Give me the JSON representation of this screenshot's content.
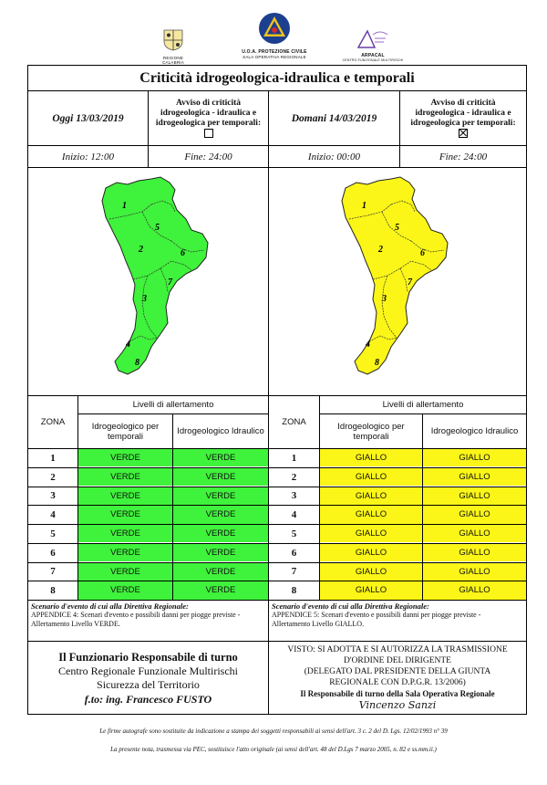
{
  "logos": {
    "left_caption": "REGIONE CALABRIA",
    "center_caption_1": "U.O.A. PROTEZIONE CIVILE",
    "center_caption_2": "SALA OPERATIVA REGIONALE",
    "right_caption_1": "ARPACAL",
    "right_caption_2": "CENTRO FUNZIONALE MULTIRISCHI"
  },
  "title": "Criticità idrogeologica-idraulica e temporali",
  "today": {
    "date": "Oggi 13/03/2019",
    "avviso_1": "Avviso di criticità",
    "avviso_2": "idrogeologica - idraulica e",
    "avviso_3": "idrogeologica per temporali:",
    "checked": false,
    "start": "Inizio: 12:00",
    "end": "Fine: 24:00",
    "color": "#3ff23b"
  },
  "tomorrow": {
    "date": "Domani 14/03/2019",
    "avviso_1": "Avviso di criticità",
    "avviso_2": "idrogeologica - idraulica e",
    "avviso_3": "idrogeologica per temporali:",
    "checked": true,
    "start": "Inizio: 00:00",
    "end": "Fine: 24:00",
    "color": "#fbf617"
  },
  "map_zone_labels": [
    "1",
    "2",
    "3",
    "4",
    "5",
    "6",
    "7",
    "8"
  ],
  "table": {
    "zona_header": "ZONA",
    "levels_header": "Livelli di allertamento",
    "col_1": "Idrogeologico per temporali",
    "col_2": "Idrogeologico Idraulico",
    "zones": [
      "1",
      "2",
      "3",
      "4",
      "5",
      "6",
      "7",
      "8"
    ],
    "today_rows": [
      [
        "VERDE",
        "VERDE"
      ],
      [
        "VERDE",
        "VERDE"
      ],
      [
        "VERDE",
        "VERDE"
      ],
      [
        "VERDE",
        "VERDE"
      ],
      [
        "VERDE",
        "VERDE"
      ],
      [
        "VERDE",
        "VERDE"
      ],
      [
        "VERDE",
        "VERDE"
      ],
      [
        "VERDE",
        "VERDE"
      ]
    ],
    "tomorrow_rows": [
      [
        "GIALLO",
        "GIALLO"
      ],
      [
        "GIALLO",
        "GIALLO"
      ],
      [
        "GIALLO",
        "GIALLO"
      ],
      [
        "GIALLO",
        "GIALLO"
      ],
      [
        "GIALLO",
        "GIALLO"
      ],
      [
        "GIALLO",
        "GIALLO"
      ],
      [
        "GIALLO",
        "GIALLO"
      ],
      [
        "GIALLO",
        "GIALLO"
      ]
    ]
  },
  "scenario": {
    "heading": "Scenario d'evento di cui alla Direttiva Regionale:",
    "today_1": "APPENDICE 4: Scenari d'evento e possibili danni per piogge previste -",
    "today_2": "Allertamento Livello VERDE.",
    "tomorrow_1": "APPENDICE 5: Scenari d'evento e possibili danni per piogge previste -",
    "tomorrow_2": "Allertamento Livello GIALLO."
  },
  "signature_left": {
    "line1": "Il Funzionario Responsabile di turno",
    "line2": "Centro Regionale Funzionale Multirischi",
    "line3": "Sicurezza del Territorio",
    "line4": "f.to: ing. Francesco FUSTO"
  },
  "signature_right": {
    "line1": "VISTO: SI ADOTTA E SI AUTORIZZA LA TRASMISSIONE",
    "line2": "D'ORDINE DEL DIRIGENTE",
    "line3": "(DELEGATO DAL PRESIDENTE DELLA GIUNTA",
    "line4": "REGIONALE CON D.P.G.R. 13/2006)",
    "line5": "Il Responsabile di turno della Sala Operativa Regionale",
    "handwritten": "Vincenzo Sanzi"
  },
  "footer": {
    "line1": "Le firme autografe sono sostituite da indicazione a stampa dei soggetti responsabili ai sensi dell'art. 3 c. 2 del D. Lgs. 12/02/1993 n° 39",
    "line2": "La presente nota, trasmessa via PEC, sostituisce l'atto originale (ai sensi dell'art. 48 del D.Lgs 7 marzo 2005, n. 82 e ss.mm.ii.)"
  },
  "colors": {
    "green": "#3ff23b",
    "yellow": "#fbf617"
  }
}
